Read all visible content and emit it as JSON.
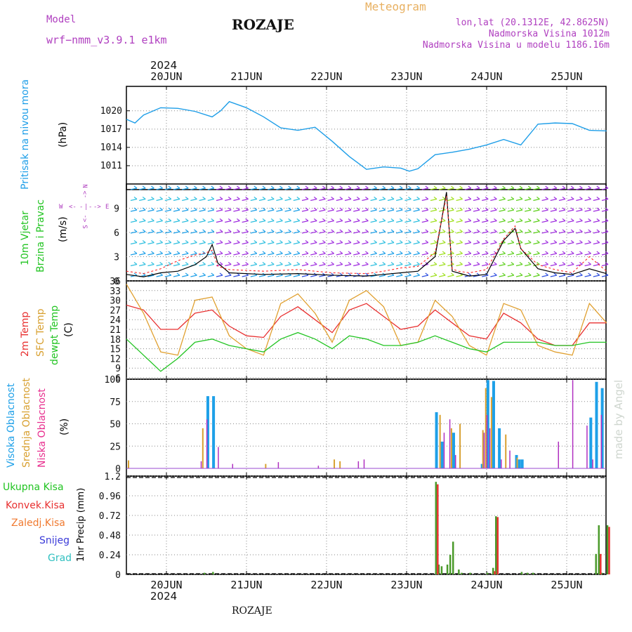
{
  "header": {
    "model_label": "Model",
    "model_name": "wrf−nmm_v3.9.1  e1km",
    "station": "ROZAJE",
    "meteogram": "Meteogram",
    "lonlat": "lon,lat (20.1312E, 42.8625N)",
    "elev": "Nadmorska Visina 1012m",
    "elev_model": "Nadmorska Visina u modelu 1186.16m",
    "year_top": "2024",
    "year_bottom": "2024",
    "footer_station": "ROZAJE",
    "credit": "made by Angel"
  },
  "days": [
    "20JUN",
    "21JUN",
    "22JUN",
    "23JUN",
    "24JUN",
    "25JUN"
  ],
  "labels": {
    "pressure": [
      "Pritisak na nivou mora",
      "(hPa)"
    ],
    "wind": [
      "10m Vjetar",
      "Brzina i Pravac",
      "(m/s)"
    ],
    "temp": [
      "2m Temp",
      "SFC Temp",
      "dewpt Temp",
      "(C)"
    ],
    "cloud": [
      "Visoka Oblacnost",
      "Srednja Oblacnost",
      "Niska Oblacnost",
      "(%)"
    ],
    "precip_legend": [
      "Ukupna Kisa",
      "Konvek.Kisa",
      "Zaledj.Kisa",
      "Snijeg",
      "Grad"
    ],
    "precip_axis": "1hr Precip (mm)",
    "compass": {
      "n": "N",
      "s": "S",
      "w": "W",
      "e": "E",
      "arrow_left": "<-",
      "arrow_right": "->",
      "dash": "-",
      "pipe": "|"
    }
  },
  "colors": {
    "pressure": "#1e9ee8",
    "wind_speed": "#000000",
    "wind_gust": "#ff2a2a",
    "temp2m": "#e83030",
    "sfc": "#e0a030",
    "dewpt": "#22c422",
    "cloud_high": "#1ea0e8",
    "cloud_mid": "#d8a030",
    "cloud_low": "#b030c0",
    "precip_total": "#4a9a2a",
    "precip_conv": "#e83030",
    "precip_frz": "#f07a30",
    "snow": "#3a3ad8",
    "grad": "#30c0c0",
    "model_text": "#b040c0",
    "meteogram_text": "#e8b060"
  },
  "chart_data": [
    {
      "type": "line",
      "panel": "pressure",
      "ylabel": "(hPa)",
      "yticks": [
        1011,
        1014,
        1017,
        1020
      ],
      "ylim": [
        1008,
        1024
      ],
      "x_hours": [
        0,
        3,
        6,
        12,
        18,
        24,
        30,
        33,
        36,
        42,
        48,
        54,
        60,
        66,
        72,
        78,
        84,
        90,
        96,
        99,
        102,
        108,
        114,
        120,
        126,
        132,
        138,
        144,
        150,
        156,
        162,
        168
      ],
      "series": [
        {
          "name": "Pritisak na nivou mora",
          "values": [
            1018.6,
            1018.0,
            1019.3,
            1020.5,
            1020.4,
            1019.9,
            1019.0,
            1020.0,
            1021.5,
            1020.5,
            1019.0,
            1017.2,
            1016.8,
            1017.3,
            1015.0,
            1012.5,
            1010.4,
            1010.8,
            1010.6,
            1010.1,
            1010.5,
            1012.8,
            1013.2,
            1013.7,
            1014.4,
            1015.3,
            1014.4,
            1017.8,
            1018.0,
            1017.9,
            1016.8,
            1016.7
          ]
        }
      ],
      "grid": true
    },
    {
      "type": "line",
      "panel": "wind",
      "ylabel": "(m/s)",
      "yticks": [
        0,
        3,
        6,
        9
      ],
      "ylim": [
        0,
        12
      ],
      "x_hours": [
        0,
        6,
        12,
        18,
        24,
        28,
        30,
        32,
        36,
        48,
        60,
        72,
        84,
        90,
        96,
        102,
        108,
        112,
        114,
        116,
        120,
        126,
        132,
        136,
        138,
        144,
        150,
        156,
        162,
        168
      ],
      "series": [
        {
          "name": "Brzina",
          "values": [
            0.8,
            0.5,
            1.0,
            1.2,
            2.0,
            3.0,
            4.5,
            2.2,
            1.0,
            0.8,
            0.9,
            0.7,
            0.6,
            0.8,
            1.0,
            1.2,
            3.0,
            11.0,
            1.2,
            1.0,
            0.6,
            0.8,
            5.0,
            6.5,
            4.0,
            1.5,
            1.0,
            0.8,
            1.5,
            0.9
          ]
        },
        {
          "name": "Udar",
          "values": [
            1.2,
            0.9,
            1.5,
            2.5,
            3.2,
            3.5,
            3.8,
            1.8,
            1.4,
            1.2,
            1.4,
            1.0,
            0.9,
            1.2,
            1.6,
            1.8,
            3.5,
            10.5,
            1.5,
            1.2,
            1.0,
            1.4,
            5.2,
            6.8,
            4.0,
            2.0,
            1.4,
            1.0,
            3.0,
            1.2
          ]
        }
      ],
      "grid": true
    },
    {
      "type": "line",
      "panel": "temperature",
      "ylabel": "(C)",
      "yticks": [
        6,
        9,
        12,
        15,
        18,
        21,
        24,
        27,
        30,
        33,
        36
      ],
      "ylim": [
        6,
        36
      ],
      "x_hours": [
        0,
        6,
        12,
        18,
        24,
        30,
        36,
        42,
        48,
        54,
        60,
        66,
        72,
        78,
        84,
        90,
        96,
        102,
        108,
        114,
        120,
        126,
        132,
        138,
        144,
        150,
        156,
        162,
        168
      ],
      "series": [
        {
          "name": "2m Temp",
          "values": [
            28.5,
            27,
            21,
            21,
            26,
            27,
            22,
            19,
            18.5,
            25,
            28,
            24,
            20,
            27,
            29,
            25,
            21,
            22,
            27,
            23,
            19,
            18,
            26,
            23,
            18,
            16,
            16,
            23,
            23
          ]
        },
        {
          "name": "SFC Temp",
          "values": [
            35,
            26,
            14,
            13,
            30,
            31,
            19,
            15,
            13,
            29,
            32,
            26,
            17,
            30,
            33,
            28,
            16,
            17,
            30,
            25,
            16,
            13,
            29,
            27,
            16,
            14,
            13,
            29,
            23
          ]
        },
        {
          "name": "dewpt Temp",
          "values": [
            18,
            13,
            8,
            12,
            17,
            18,
            16,
            15,
            14,
            18,
            20,
            18,
            15,
            19,
            18,
            16,
            16,
            17,
            19,
            17,
            15,
            14,
            17,
            17,
            17,
            16,
            16,
            17,
            17
          ]
        }
      ],
      "grid": true
    },
    {
      "type": "bar",
      "panel": "cloud",
      "ylabel": "(%)",
      "yticks": [
        0,
        25,
        50,
        75,
        100
      ],
      "ylim": [
        0,
        100
      ],
      "series": [
        {
          "name": "Visoka Oblacnost",
          "x_hours": [
            28,
            30,
            108,
            110,
            114,
            124,
            126,
            128,
            130,
            136,
            137,
            138,
            162,
            164,
            166
          ],
          "values": [
            81,
            81,
            63,
            30,
            40,
            5,
            99,
            98,
            45,
            15,
            10,
            10,
            57,
            97,
            90
          ]
        },
        {
          "name": "Srednja Oblacnost",
          "x_hours": [
            0,
            26,
            48,
            72,
            74,
            109,
            113,
            116,
            124,
            125,
            127,
            132,
            136
          ],
          "values": [
            9,
            45,
            5,
            10,
            8,
            60,
            45,
            50,
            43,
            90,
            80,
            38,
            12
          ]
        },
        {
          "name": "Niska Oblacnost",
          "x_hours": [
            25,
            27,
            31,
            36,
            52,
            66,
            80,
            82,
            110,
            112,
            114,
            124,
            125,
            126,
            130,
            133,
            150,
            155,
            160,
            162,
            165
          ],
          "values": [
            8,
            55,
            24,
            5,
            7,
            3,
            8,
            10,
            40,
            55,
            15,
            40,
            60,
            45,
            10,
            20,
            30,
            99,
            48,
            10,
            60
          ]
        }
      ],
      "grid": true
    },
    {
      "type": "bar",
      "panel": "precipitation",
      "ylabel": "1hr Precip (mm)",
      "yticks": [
        0,
        0.24,
        0.48,
        0.72,
        0.96,
        1.2
      ],
      "ylim": [
        0,
        1.2
      ],
      "series": [
        {
          "name": "Ukupna Kisa",
          "x_hours": [
            27,
            30,
            108,
            109,
            110,
            112,
            113,
            114,
            116,
            117,
            120,
            126,
            128,
            129,
            138,
            140,
            142,
            164,
            165,
            166,
            168
          ],
          "values": [
            0.02,
            0.03,
            1.13,
            0.12,
            0.1,
            0.12,
            0.24,
            0.4,
            0.06,
            0.02,
            0.02,
            0.02,
            0.08,
            0.71,
            0.03,
            0.02,
            0.02,
            0.25,
            0.6,
            0.02,
            0.6
          ]
        },
        {
          "name": "Konvek.Kisa",
          "x_hours": [
            108,
            128,
            129,
            165,
            168
          ],
          "values": [
            1.1,
            0.04,
            0.7,
            0.25,
            0.58
          ]
        }
      ],
      "grid": true
    }
  ]
}
